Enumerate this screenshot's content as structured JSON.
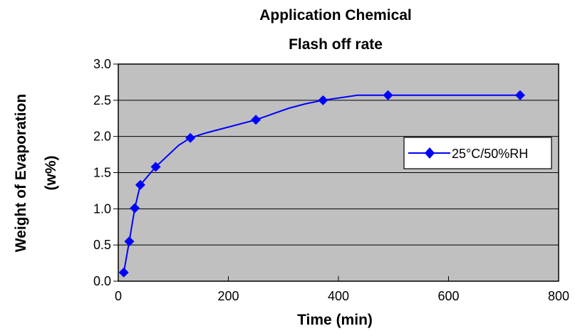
{
  "chart_data": {
    "type": "line",
    "title": "Application Chemical",
    "subtitle": "Flash off rate",
    "xlabel": "Time (min)",
    "ylabel": "Weight of Evaporation",
    "ylabel_unit": "(w%)",
    "xlim": [
      0,
      800
    ],
    "ylim": [
      0,
      3.0
    ],
    "xticks": [
      0,
      200,
      400,
      600,
      800
    ],
    "yticks": [
      "0.0",
      "0.5",
      "1.0",
      "1.5",
      "2.0",
      "2.5",
      "3.0"
    ],
    "grid": "horizontal",
    "legend_position": "right",
    "background_color": "#c0c0c0",
    "series": [
      {
        "name": "25°C/50%RH",
        "color": "#0000ff",
        "line": [
          {
            "x": 10,
            "y": 0.12
          },
          {
            "x": 20,
            "y": 0.55
          },
          {
            "x": 30,
            "y": 1.01
          },
          {
            "x": 40,
            "y": 1.33
          },
          {
            "x": 68,
            "y": 1.58
          },
          {
            "x": 110,
            "y": 1.88
          },
          {
            "x": 131,
            "y": 1.98
          },
          {
            "x": 160,
            "y": 2.05
          },
          {
            "x": 200,
            "y": 2.13
          },
          {
            "x": 250,
            "y": 2.23
          },
          {
            "x": 310,
            "y": 2.39
          },
          {
            "x": 340,
            "y": 2.45
          },
          {
            "x": 372,
            "y": 2.5
          },
          {
            "x": 435,
            "y": 2.57
          },
          {
            "x": 490,
            "y": 2.57
          },
          {
            "x": 730,
            "y": 2.57
          }
        ],
        "markers": [
          {
            "x": 10,
            "y": 0.12
          },
          {
            "x": 20,
            "y": 0.55
          },
          {
            "x": 30,
            "y": 1.01
          },
          {
            "x": 40,
            "y": 1.33
          },
          {
            "x": 68,
            "y": 1.58
          },
          {
            "x": 131,
            "y": 1.98
          },
          {
            "x": 250,
            "y": 2.23
          },
          {
            "x": 372,
            "y": 2.5
          },
          {
            "x": 490,
            "y": 2.57
          },
          {
            "x": 730,
            "y": 2.57
          }
        ]
      }
    ]
  }
}
